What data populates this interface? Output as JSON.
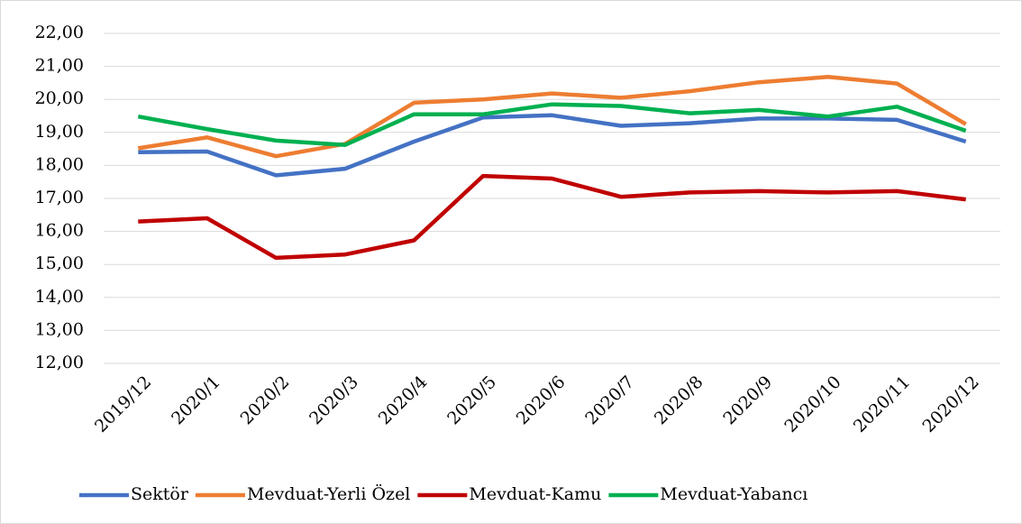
{
  "chart_data": {
    "type": "line",
    "categories": [
      "2019/12",
      "2020/1",
      "2020/2",
      "2020/3",
      "2020/4",
      "2020/5",
      "2020/6",
      "2020/7",
      "2020/8",
      "2020/9",
      "2020/10",
      "2020/11",
      "2020/12"
    ],
    "series": [
      {
        "name": "Sektör",
        "color": "#4472c4",
        "values": [
          18.4,
          18.42,
          17.7,
          17.9,
          18.72,
          19.45,
          19.52,
          19.2,
          19.28,
          19.42,
          19.42,
          19.38,
          18.72
        ]
      },
      {
        "name": "Mevduat-Yerli Özel",
        "color": "#ed7d31",
        "values": [
          18.52,
          18.85,
          18.28,
          18.65,
          19.9,
          20.0,
          20.18,
          20.05,
          20.25,
          20.52,
          20.68,
          20.48,
          19.25
        ]
      },
      {
        "name": "Mevduat-Kamu",
        "color": "#c00000",
        "values": [
          16.3,
          16.4,
          15.2,
          15.3,
          15.73,
          17.68,
          17.6,
          17.05,
          17.18,
          17.22,
          17.18,
          17.22,
          16.97
        ]
      },
      {
        "name": "Mevduat-Yabancı",
        "color": "#00b050",
        "values": [
          19.48,
          19.1,
          18.75,
          18.62,
          19.55,
          19.55,
          19.85,
          19.8,
          19.58,
          19.68,
          19.48,
          19.78,
          19.05
        ]
      }
    ],
    "ylim": [
      12,
      22
    ],
    "yticks": [
      {
        "value": 12,
        "label": "12,00"
      },
      {
        "value": 13,
        "label": "13,00"
      },
      {
        "value": 14,
        "label": "14,00"
      },
      {
        "value": 15,
        "label": "15,00"
      },
      {
        "value": 16,
        "label": "16,00"
      },
      {
        "value": 17,
        "label": "17,00"
      },
      {
        "value": 18,
        "label": "18,00"
      },
      {
        "value": 19,
        "label": "19,00"
      },
      {
        "value": 20,
        "label": "20,00"
      },
      {
        "value": 21,
        "label": "21,00"
      },
      {
        "value": 22,
        "label": "22,00"
      }
    ],
    "grid": true,
    "legend": "bottom"
  }
}
